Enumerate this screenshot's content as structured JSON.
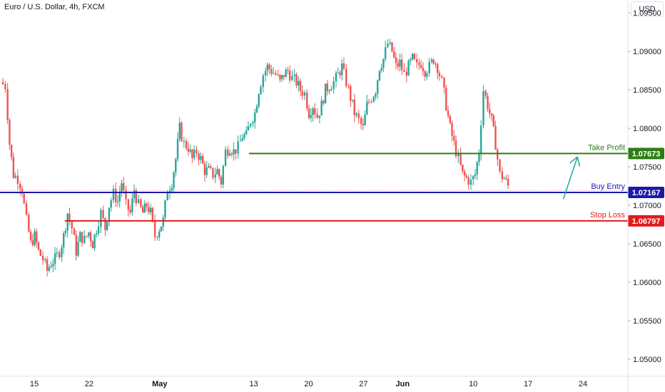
{
  "symbol_title": "Euro / U.S. Dollar, 4h, FXCM",
  "currency_button": "USD",
  "colors": {
    "up": "#26a69a",
    "down": "#ef5350",
    "take_profit": "#2e7d12",
    "buy_entry": "#1a1aa6",
    "stop_loss": "#e31b1b",
    "arrow": "#26a69a"
  },
  "chart_data": {
    "type": "candlestick",
    "ylim": [
      1.048,
      1.096
    ],
    "y_ticks": [
      {
        "value": 1.095,
        "label": "1.09500"
      },
      {
        "value": 1.09,
        "label": "1.09000"
      },
      {
        "value": 1.085,
        "label": "1.08500"
      },
      {
        "value": 1.08,
        "label": "1.08000"
      },
      {
        "value": 1.075,
        "label": "1.07500"
      },
      {
        "value": 1.07,
        "label": "1.07000"
      },
      {
        "value": 1.065,
        "label": "1.06500"
      },
      {
        "value": 1.06,
        "label": "1.06000"
      },
      {
        "value": 1.055,
        "label": "1.05500"
      },
      {
        "value": 1.05,
        "label": "1.05000"
      }
    ],
    "x_ticks": [
      {
        "label": "15",
        "day": 15,
        "bold": false
      },
      {
        "label": "22",
        "day": 22,
        "bold": false
      },
      {
        "label": "May",
        "day": 31,
        "bold": true
      },
      {
        "label": "13",
        "day": 43,
        "bold": false
      },
      {
        "label": "20",
        "day": 50,
        "bold": false
      },
      {
        "label": "27",
        "day": 57,
        "bold": false
      },
      {
        "label": "Jun",
        "day": 62,
        "bold": true
      },
      {
        "label": "10",
        "day": 71,
        "bold": false
      },
      {
        "label": "17",
        "day": 78,
        "bold": false
      },
      {
        "label": "24",
        "day": 85,
        "bold": false
      }
    ],
    "levels": [
      {
        "name": "Take Profit",
        "value": "1.07673",
        "price": 1.07673,
        "color_key": "take_profit"
      },
      {
        "name": "Buy Entry",
        "value": "1.07167",
        "price": 1.07167,
        "color_key": "buy_entry"
      },
      {
        "name": "Stop Loss",
        "value": "1.06797",
        "price": 1.06797,
        "color_key": "stop_loss"
      }
    ],
    "support_line": {
      "price": 1.06797
    },
    "path_points": [
      [
        11.0,
        1.086
      ],
      [
        11.6,
        1.0855
      ],
      [
        12.1,
        1.078
      ],
      [
        12.6,
        1.074
      ],
      [
        13.2,
        1.0735
      ],
      [
        13.7,
        1.072
      ],
      [
        14.3,
        1.068
      ],
      [
        14.8,
        1.065
      ],
      [
        15.3,
        1.066
      ],
      [
        15.8,
        1.064
      ],
      [
        16.4,
        1.063
      ],
      [
        16.9,
        1.0615
      ],
      [
        17.4,
        1.0625
      ],
      [
        17.9,
        1.063
      ],
      [
        18.5,
        1.064
      ],
      [
        19.0,
        1.066
      ],
      [
        19.5,
        1.069
      ],
      [
        20.1,
        1.067
      ],
      [
        20.6,
        1.064
      ],
      [
        21.1,
        1.066
      ],
      [
        21.7,
        1.0655
      ],
      [
        22.2,
        1.0665
      ],
      [
        22.7,
        1.065
      ],
      [
        23.2,
        1.067
      ],
      [
        23.8,
        1.069
      ],
      [
        24.3,
        1.067
      ],
      [
        24.8,
        1.07
      ],
      [
        25.4,
        1.0715
      ],
      [
        25.9,
        1.0705
      ],
      [
        26.4,
        1.073
      ],
      [
        27.0,
        1.07
      ],
      [
        27.5,
        1.069
      ],
      [
        28.0,
        1.072
      ],
      [
        28.6,
        1.07
      ],
      [
        29.1,
        1.069
      ],
      [
        29.6,
        1.07
      ],
      [
        30.1,
        1.069
      ],
      [
        30.7,
        1.066
      ],
      [
        31.2,
        1.067
      ],
      [
        31.7,
        1.068
      ],
      [
        32.3,
        1.072
      ],
      [
        32.8,
        1.073
      ],
      [
        33.3,
        1.076
      ],
      [
        33.8,
        1.08
      ],
      [
        34.4,
        1.078
      ],
      [
        34.9,
        1.0775
      ],
      [
        35.4,
        1.076
      ],
      [
        36.0,
        1.077
      ],
      [
        36.5,
        1.076
      ],
      [
        37.0,
        1.0745
      ],
      [
        37.5,
        1.0745
      ],
      [
        38.1,
        1.074
      ],
      [
        38.6,
        1.0745
      ],
      [
        39.1,
        1.073
      ],
      [
        39.7,
        1.077
      ],
      [
        40.2,
        1.0775
      ],
      [
        40.7,
        1.077
      ],
      [
        41.3,
        1.0775
      ],
      [
        41.8,
        1.079
      ],
      [
        42.3,
        1.079
      ],
      [
        42.9,
        1.081
      ],
      [
        43.4,
        1.082
      ],
      [
        43.9,
        1.085
      ],
      [
        44.5,
        1.087
      ],
      [
        45.0,
        1.088
      ],
      [
        45.5,
        1.0875
      ],
      [
        46.1,
        1.087
      ],
      [
        46.6,
        1.086
      ],
      [
        47.1,
        1.087
      ],
      [
        47.6,
        1.0875
      ],
      [
        48.2,
        1.0865
      ],
      [
        48.7,
        1.086
      ],
      [
        49.2,
        1.085
      ],
      [
        49.8,
        1.0845
      ],
      [
        50.3,
        1.082
      ],
      [
        50.8,
        1.083
      ],
      [
        51.4,
        1.0815
      ],
      [
        51.9,
        1.083
      ],
      [
        52.4,
        1.085
      ],
      [
        52.9,
        1.0855
      ],
      [
        53.5,
        1.086
      ],
      [
        54.0,
        1.087
      ],
      [
        54.5,
        1.088
      ],
      [
        55.1,
        1.086
      ],
      [
        55.6,
        1.084
      ],
      [
        56.1,
        1.082
      ],
      [
        56.7,
        1.081
      ],
      [
        57.2,
        1.08
      ],
      [
        57.7,
        1.083
      ],
      [
        58.3,
        1.084
      ],
      [
        58.8,
        1.085
      ],
      [
        59.3,
        1.088
      ],
      [
        59.8,
        1.089
      ],
      [
        60.4,
        1.091
      ],
      [
        60.9,
        1.09
      ],
      [
        61.4,
        1.088
      ],
      [
        61.9,
        1.0885
      ],
      [
        62.5,
        1.087
      ],
      [
        63.0,
        1.088
      ],
      [
        63.5,
        1.089
      ],
      [
        64.1,
        1.088
      ],
      [
        64.6,
        1.0885
      ],
      [
        65.1,
        1.0875
      ],
      [
        65.7,
        1.088
      ],
      [
        66.2,
        1.089
      ],
      [
        66.7,
        1.088
      ],
      [
        67.3,
        1.086
      ],
      [
        67.8,
        1.083
      ],
      [
        68.3,
        1.08
      ],
      [
        68.8,
        1.078
      ],
      [
        69.4,
        1.076
      ],
      [
        69.9,
        1.074
      ],
      [
        70.4,
        1.0735
      ],
      [
        71.0,
        1.073
      ],
      [
        71.5,
        1.074
      ],
      [
        72.0,
        1.077
      ],
      [
        72.6,
        1.085
      ],
      [
        73.1,
        1.083
      ],
      [
        73.6,
        1.081
      ],
      [
        74.1,
        1.078
      ],
      [
        74.7,
        1.074
      ],
      [
        75.2,
        1.0735
      ],
      [
        75.7,
        1.0725
      ]
    ]
  },
  "arrow": {
    "from": [
      82.5,
      1.0708
    ],
    "to": [
      84.3,
      1.0763
    ]
  }
}
